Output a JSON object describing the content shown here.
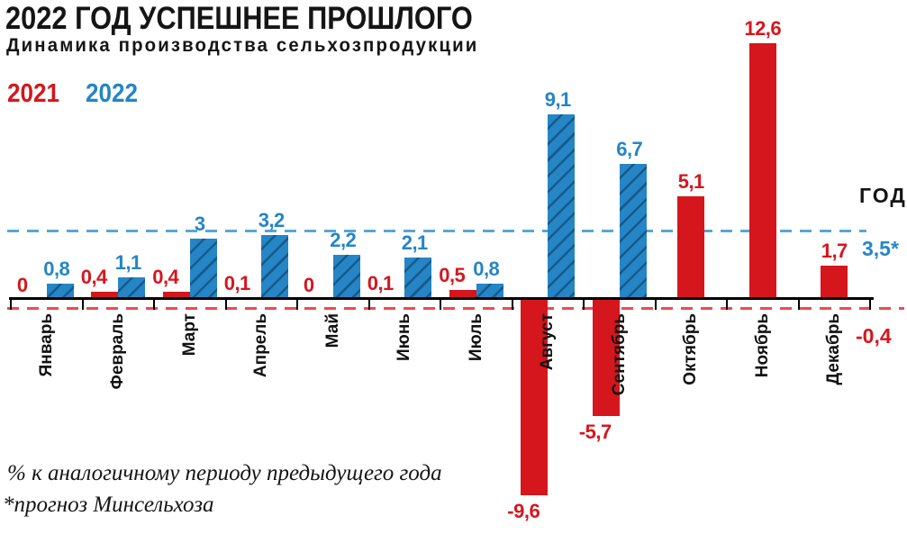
{
  "chart_data": {
    "type": "bar",
    "title": "2022 ГОД УСПЕШНЕЕ ПРОШЛОГО",
    "subtitle": "Динамика производства сельхозпродукции",
    "categories": [
      "Январь",
      "Февраль",
      "Март",
      "Апрель",
      "Май",
      "Июнь",
      "Июль",
      "Август",
      "Сентябрь",
      "Октябрь",
      "Ноябрь",
      "Декабрь"
    ],
    "series": [
      {
        "name": "2021",
        "color": "#d5161d",
        "values": [
          0,
          0.4,
          0.4,
          0.1,
          0,
          0.1,
          0.5,
          -9.6,
          -5.7,
          5.1,
          12.6,
          1.7
        ]
      },
      {
        "name": "2022",
        "color": "#2585c5",
        "hatched": true,
        "values": [
          0.8,
          1.1,
          3,
          3.2,
          2.2,
          2.1,
          0.8,
          9.1,
          6.7,
          null,
          null,
          null
        ]
      }
    ],
    "year_label": "ГОД",
    "reference_lines": [
      {
        "series": "2022",
        "label": "3,5*",
        "value": 3.5,
        "style": "dashed",
        "color": "#5aa5d8"
      },
      {
        "series": "2021",
        "label": "-0,4",
        "value": -0.4,
        "style": "dashed",
        "color": "#ee4b52"
      }
    ],
    "ylim": [
      -10.5,
      13.5
    ],
    "grid": false,
    "legend_position": "top-left",
    "decimal_separator": ","
  },
  "footnotes": [
    "% к аналогичному периоду предыдущего года",
    "*прогноз Минсельхоза"
  ]
}
